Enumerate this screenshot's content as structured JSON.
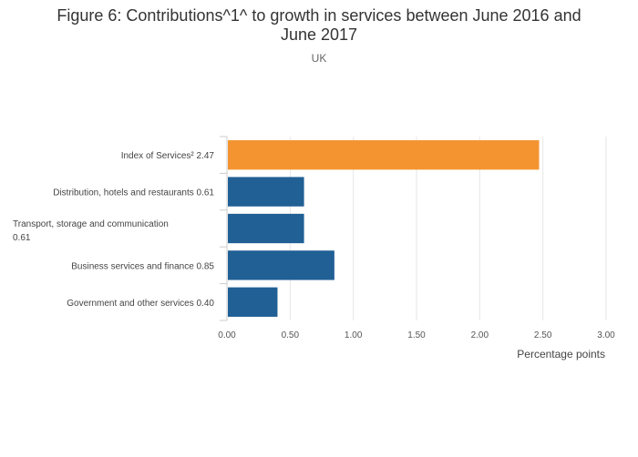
{
  "chart_data": {
    "type": "bar",
    "orientation": "horizontal",
    "title_line1": "Figure 6: Contributions^1^ to growth in services between June 2016 and",
    "title_line2": "June 2017",
    "subtitle": "UK",
    "xlabel": "Percentage points",
    "xlim": [
      0,
      3
    ],
    "xticks": [
      "0.00",
      "0.50",
      "1.00",
      "1.50",
      "2.00",
      "2.50",
      "3.00"
    ],
    "xtick_values": [
      0,
      0.5,
      1,
      1.5,
      2,
      2.5,
      3
    ],
    "categories": [
      {
        "label_lines": [
          "Index of Services² 2.47"
        ],
        "value": 2.47,
        "color": "#f39431"
      },
      {
        "label_lines": [
          "Distribution, hotels and restaurants 0.61"
        ],
        "value": 0.61,
        "color": "#206095"
      },
      {
        "label_lines": [
          "Transport, storage and communication",
          "0.61"
        ],
        "value": 0.61,
        "color": "#206095"
      },
      {
        "label_lines": [
          "Business services and finance 0.85"
        ],
        "value": 0.85,
        "color": "#206095"
      },
      {
        "label_lines": [
          "Government and other services 0.40"
        ],
        "value": 0.4,
        "color": "#206095"
      }
    ]
  }
}
